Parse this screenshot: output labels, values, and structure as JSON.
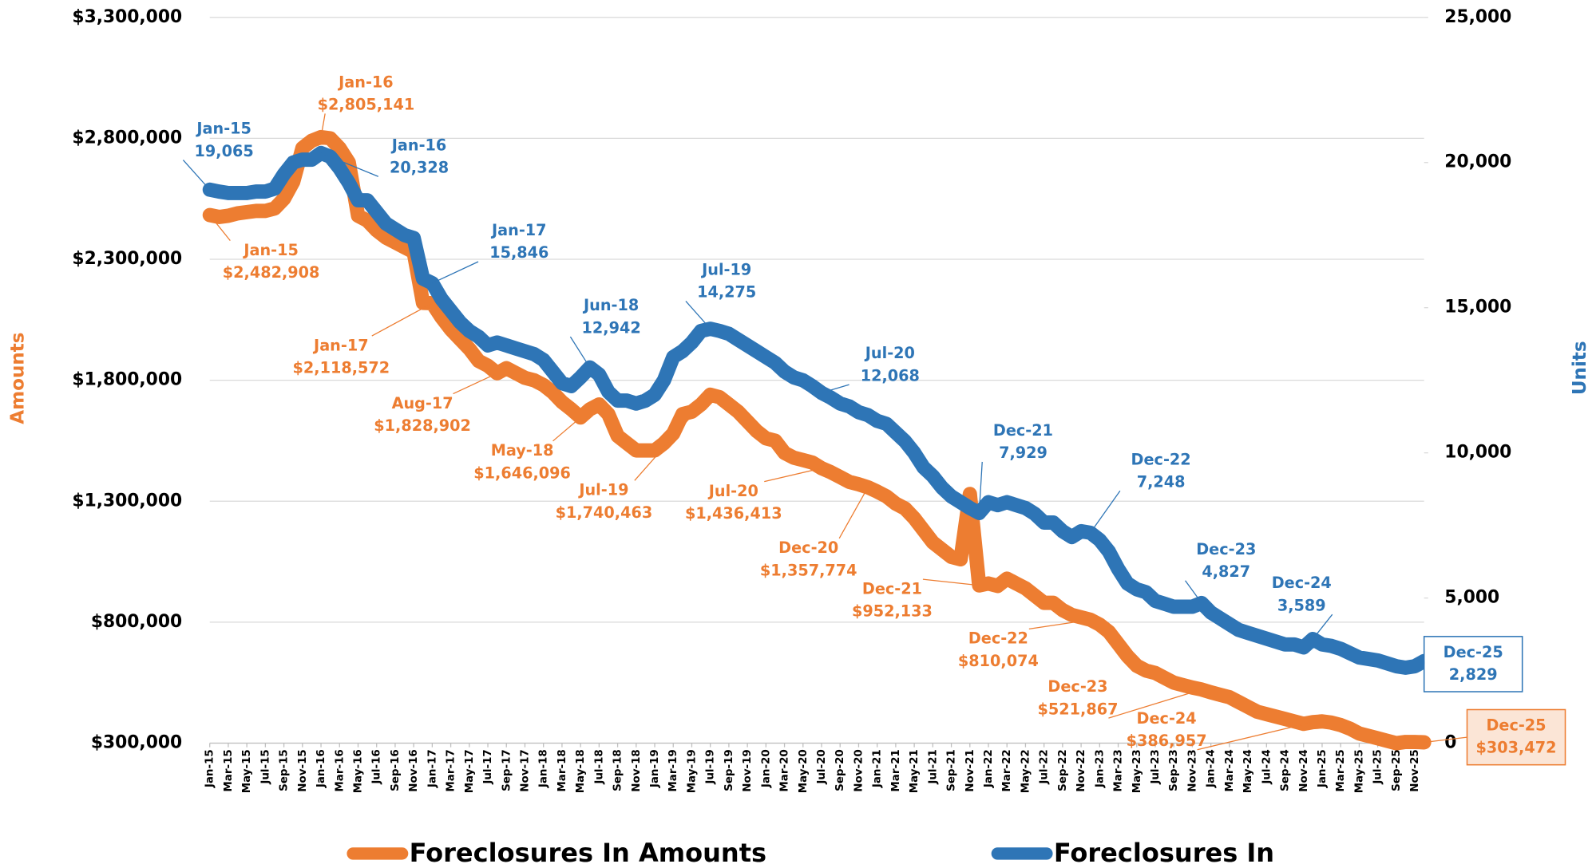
{
  "chart_data": {
    "type": "line",
    "ylabel": "Amounts",
    "y2label": "Units",
    "grid": true,
    "legend": "bottom",
    "ylim": [
      300000,
      3300000
    ],
    "yticks": [
      {
        "value": 300000,
        "label": "$300,000"
      },
      {
        "value": 800000,
        "label": "$800,000"
      },
      {
        "value": 1300000,
        "label": "$1,300,000"
      },
      {
        "value": 1800000,
        "label": "$1,800,000"
      },
      {
        "value": 2300000,
        "label": "$2,300,000"
      },
      {
        "value": 2800000,
        "label": "$2,800,000"
      },
      {
        "value": 3300000,
        "label": "$3,300,000"
      }
    ],
    "y2lim": [
      0,
      25000
    ],
    "y2ticks": [
      0,
      {
        "value": 5000,
        "label": "5,000"
      },
      {
        "value": 10000,
        "label": "10,000"
      },
      {
        "value": 15000,
        "label": "15,000"
      },
      {
        "value": 20000,
        "label": "20,000"
      },
      {
        "value": 25000,
        "label": "25,000"
      }
    ],
    "categories": [
      "Jan-15",
      null,
      "Mar-15",
      null,
      "May-15",
      null,
      "Jul-15",
      null,
      "Sep-15",
      null,
      "Nov-15",
      null,
      "Jan-16",
      null,
      "Mar-16",
      null,
      "May-16",
      null,
      "Jul-16",
      null,
      "Sep-16",
      null,
      "Nov-16",
      null,
      "Jan-17",
      null,
      "Mar-17",
      null,
      "May-17",
      null,
      "Jul-17",
      null,
      "Sep-17",
      null,
      "Nov-17",
      null,
      "Jan-18",
      null,
      "Mar-18",
      null,
      "May-18",
      null,
      "Jul-18",
      null,
      "Sep-18",
      null,
      "Nov-18",
      null,
      "Jan-19",
      null,
      "Mar-19",
      null,
      "May-19",
      null,
      "Jul-19",
      null,
      "Sep-19",
      null,
      "Nov-19",
      null,
      "Jan-20",
      null,
      "Mar-20",
      null,
      "May-20",
      null,
      "Jul-20",
      null,
      "Sep-20",
      null,
      "Nov-20",
      null,
      "Jan-21",
      null,
      "Mar-21",
      null,
      "May-21",
      null,
      "Jul-21",
      null,
      "Sep-21",
      null,
      "Nov-21",
      null,
      "Jan-22",
      null,
      "Mar-22",
      null,
      "May-22",
      null,
      "Jul-22",
      null,
      "Sep-22",
      null,
      "Nov-22",
      null,
      "Jan-23",
      null,
      "Mar-23",
      null,
      "May-23",
      null,
      "Jul-23",
      null,
      "Sep-23",
      null,
      "Nov-23",
      null,
      "Jan-24",
      null,
      "Mar-24",
      null,
      "May-24",
      null,
      "Jul-24",
      null,
      "Sep-24",
      null,
      "Nov-24",
      null,
      "Jan-25",
      null,
      "Mar-25",
      null,
      "May-25",
      null,
      "Jul-25",
      null,
      "Sep-25",
      null,
      "Nov-25",
      null
    ],
    "series": [
      {
        "name": "Foreclosures In Amounts",
        "color": "#ED7D31",
        "values": [
          2482908,
          2475000,
          2480000,
          2490000,
          2495000,
          2500000,
          2500000,
          2510000,
          2550000,
          2620000,
          2760000,
          2790000,
          2805141,
          2800000,
          2760000,
          2700000,
          2480000,
          2460000,
          2420000,
          2390000,
          2370000,
          2350000,
          2330000,
          2120000,
          2118572,
          2060000,
          2010000,
          1970000,
          1930000,
          1880000,
          1860000,
          1828902,
          1850000,
          1830000,
          1810000,
          1800000,
          1780000,
          1750000,
          1710000,
          1680000,
          1646096,
          1680000,
          1700000,
          1660000,
          1570000,
          1540000,
          1510000,
          1510000,
          1510000,
          1540000,
          1580000,
          1660000,
          1670000,
          1700000,
          1740463,
          1730000,
          1700000,
          1670000,
          1630000,
          1590000,
          1560000,
          1550000,
          1500000,
          1480000,
          1470000,
          1460000,
          1436413,
          1420000,
          1400000,
          1380000,
          1370000,
          1357774,
          1340000,
          1320000,
          1290000,
          1270000,
          1230000,
          1180000,
          1130000,
          1100000,
          1070000,
          1060000,
          1330000,
          952133,
          960000,
          950000,
          980000,
          960000,
          940000,
          910000,
          880000,
          880000,
          850000,
          830000,
          820000,
          810074,
          790000,
          760000,
          710000,
          660000,
          620000,
          600000,
          590000,
          570000,
          550000,
          540000,
          530000,
          521867,
          510000,
          500000,
          490000,
          470000,
          450000,
          430000,
          420000,
          410000,
          400000,
          390000,
          380000,
          386957,
          390000,
          385000,
          375000,
          360000,
          340000,
          330000,
          320000,
          310000,
          300000,
          305000,
          305000,
          303472
        ],
        "value_labels": [
          [
            "Jan-15",
            "$2,482,908"
          ],
          null,
          null,
          null,
          null,
          null,
          null,
          null,
          null,
          null,
          null,
          null,
          [
            "Jan-16",
            "$2,805,141"
          ],
          null,
          null,
          null,
          null,
          null,
          null,
          null,
          null,
          null,
          null,
          null,
          [
            "Jan-17",
            "$2,118,572"
          ],
          null,
          null,
          null,
          null,
          null,
          null,
          [
            "Aug-17",
            "$1,828,902"
          ],
          null,
          null,
          null,
          null,
          null,
          null,
          null,
          null,
          [
            "May-18",
            "$1,646,096"
          ],
          null,
          null,
          null,
          null,
          null,
          null,
          null,
          null,
          null,
          null,
          null,
          null,
          null,
          [
            "Jul-19",
            "$1,740,463"
          ],
          null,
          null,
          null,
          null,
          null,
          null,
          null,
          null,
          null,
          null,
          null,
          [
            "Jul-20",
            "$1,436,413"
          ],
          null,
          null,
          null,
          null,
          [
            "Dec-20",
            "$1,357,774"
          ],
          null,
          null,
          null,
          null,
          null,
          null,
          null,
          null,
          null,
          null,
          null,
          [
            "Dec-21",
            "$952,133"
          ],
          null,
          null,
          null,
          null,
          null,
          null,
          null,
          null,
          null,
          null,
          null,
          [
            "Dec-22",
            "$810,074"
          ],
          null,
          null,
          null,
          null,
          null,
          null,
          null,
          null,
          null,
          null,
          null,
          [
            "Dec-23",
            "$521,867"
          ],
          null,
          null,
          null,
          null,
          null,
          null,
          null,
          null,
          null,
          null,
          null,
          [
            "Dec-24",
            "$386,957"
          ],
          null,
          null,
          null,
          null,
          null,
          null,
          null,
          null,
          null,
          null,
          null,
          [
            "Dec-25",
            "$303,472"
          ]
        ]
      },
      {
        "name": "Foreclosures In",
        "color": "#2E75B6",
        "axis": "y2",
        "values": [
          19065,
          19000,
          18950,
          18950,
          18950,
          19000,
          19000,
          19100,
          19600,
          20000,
          20100,
          20100,
          20328,
          20200,
          19800,
          19300,
          18700,
          18700,
          18300,
          17900,
          17700,
          17500,
          17400,
          16000,
          15846,
          15300,
          14900,
          14500,
          14200,
          14000,
          13700,
          13800,
          13700,
          13600,
          13500,
          13400,
          13200,
          12800,
          12400,
          12300,
          12600,
          12942,
          12700,
          12100,
          11800,
          11800,
          11700,
          11800,
          12000,
          12500,
          13300,
          13500,
          13800,
          14200,
          14275,
          14200,
          14100,
          13900,
          13700,
          13500,
          13300,
          13100,
          12800,
          12600,
          12500,
          12300,
          12068,
          11900,
          11700,
          11600,
          11400,
          11300,
          11100,
          11000,
          10700,
          10400,
          10000,
          9500,
          9200,
          8800,
          8500,
          8300,
          8100,
          7929,
          8300,
          8200,
          8300,
          8200,
          8100,
          7900,
          7600,
          7600,
          7300,
          7100,
          7300,
          7248,
          7000,
          6600,
          6000,
          5500,
          5300,
          5200,
          4900,
          4800,
          4700,
          4700,
          4700,
          4827,
          4500,
          4300,
          4100,
          3900,
          3800,
          3700,
          3600,
          3500,
          3400,
          3400,
          3300,
          3589,
          3400,
          3350,
          3250,
          3100,
          2950,
          2900,
          2850,
          2750,
          2650,
          2600,
          2650,
          2829
        ],
        "value_labels": [
          [
            "Jan-15",
            "19,065"
          ],
          null,
          null,
          null,
          null,
          null,
          null,
          null,
          null,
          null,
          null,
          null,
          [
            "Jan-16",
            "20,328"
          ],
          null,
          null,
          null,
          null,
          null,
          null,
          null,
          null,
          null,
          null,
          null,
          [
            "Jan-17",
            "15,846"
          ],
          null,
          null,
          null,
          null,
          null,
          null,
          null,
          null,
          null,
          null,
          null,
          null,
          null,
          null,
          null,
          null,
          [
            "Jun-18",
            "12,942"
          ],
          null,
          null,
          null,
          null,
          null,
          null,
          null,
          null,
          null,
          null,
          null,
          null,
          [
            "Jul-19",
            "14,275"
          ],
          null,
          null,
          null,
          null,
          null,
          null,
          null,
          null,
          null,
          null,
          null,
          [
            "Jul-20",
            "12,068"
          ],
          null,
          null,
          null,
          null,
          null,
          null,
          null,
          null,
          null,
          null,
          null,
          null,
          null,
          null,
          null,
          null,
          [
            "Dec-21",
            "7,929"
          ],
          null,
          null,
          null,
          null,
          null,
          null,
          null,
          null,
          null,
          null,
          null,
          [
            "Dec-22",
            "7,248"
          ],
          null,
          null,
          null,
          null,
          null,
          null,
          null,
          null,
          null,
          null,
          null,
          [
            "Dec-23",
            "4,827"
          ],
          null,
          null,
          null,
          null,
          null,
          null,
          null,
          null,
          null,
          null,
          null,
          [
            "Dec-24",
            "3,589"
          ],
          null,
          null,
          null,
          null,
          null,
          null,
          null,
          null,
          null,
          null,
          null,
          [
            "Dec-25",
            "2,829"
          ]
        ]
      }
    ]
  }
}
